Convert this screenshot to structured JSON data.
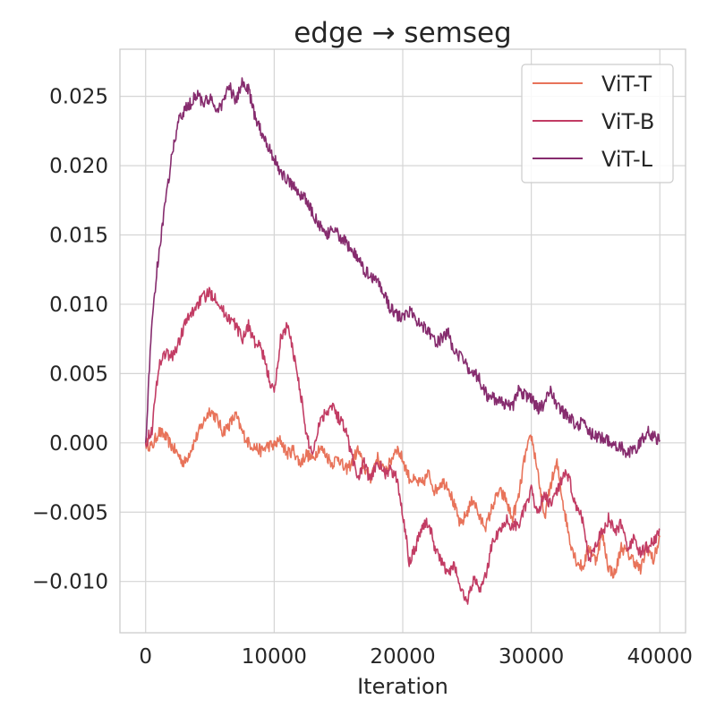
{
  "chart_data": {
    "type": "line",
    "title": "edge → semseg",
    "xlabel": "Iteration",
    "ylabel": "",
    "xlim": [
      -2000,
      42000
    ],
    "ylim": [
      -0.0137,
      0.0284
    ],
    "x_ticks": [
      0,
      10000,
      20000,
      30000,
      40000
    ],
    "x_tick_labels": [
      "0",
      "10000",
      "20000",
      "30000",
      "40000"
    ],
    "y_ticks": [
      -0.01,
      -0.005,
      0.0,
      0.005,
      0.01,
      0.015,
      0.02,
      0.025
    ],
    "y_tick_labels": [
      "−0.010",
      "−0.005",
      "0.000",
      "0.005",
      "0.010",
      "0.015",
      "0.020",
      "0.025"
    ],
    "grid": true,
    "legend_position": "top-right",
    "series": [
      {
        "name": "ViT-T",
        "color": "#e8735a",
        "x": [
          0,
          500,
          1000,
          1500,
          2000,
          2500,
          3000,
          3500,
          4000,
          4500,
          5000,
          5500,
          6000,
          6500,
          7000,
          7500,
          8000,
          8500,
          9000,
          9500,
          10000,
          10500,
          11000,
          11500,
          12000,
          12500,
          13000,
          13500,
          14000,
          14500,
          15000,
          15500,
          16000,
          16500,
          17000,
          17500,
          18000,
          18500,
          19000,
          19500,
          20000,
          20500,
          21000,
          21500,
          22000,
          22500,
          23000,
          23500,
          24000,
          24500,
          25000,
          25500,
          26000,
          26500,
          27000,
          27500,
          28000,
          28500,
          29000,
          29500,
          30000,
          30500,
          31000,
          31500,
          32000,
          32500,
          33000,
          33500,
          34000,
          34500,
          35000,
          35500,
          36000,
          36500,
          37000,
          37500,
          38000,
          38500,
          39000,
          39500,
          40000
        ],
        "y": [
          0.0,
          -0.0003,
          0.0008,
          0.0005,
          -0.0002,
          -0.0008,
          -0.0015,
          -0.0005,
          0.0005,
          0.0015,
          0.0024,
          0.0018,
          0.0008,
          0.0013,
          0.002,
          0.0008,
          0.0,
          -0.0003,
          -0.0006,
          -0.0002,
          -0.0002,
          0.0002,
          -0.0008,
          -0.0005,
          -0.0015,
          -0.0008,
          -0.0012,
          -0.0003,
          -0.0008,
          -0.0015,
          -0.001,
          -0.002,
          -0.0015,
          -0.0005,
          -0.0018,
          -0.0025,
          -0.001,
          -0.002,
          -0.0015,
          -0.0003,
          -0.0012,
          -0.0025,
          -0.0028,
          -0.003,
          -0.0022,
          -0.0035,
          -0.0028,
          -0.003,
          -0.0045,
          -0.006,
          -0.005,
          -0.004,
          -0.0055,
          -0.006,
          -0.0045,
          -0.0035,
          -0.004,
          -0.0055,
          -0.004,
          -0.001,
          0.0005,
          -0.002,
          -0.0055,
          -0.003,
          -0.0015,
          -0.0045,
          -0.007,
          -0.0085,
          -0.009,
          -0.0075,
          -0.0085,
          -0.0065,
          -0.009,
          -0.0095,
          -0.0075,
          -0.008,
          -0.0085,
          -0.0092,
          -0.0075,
          -0.0085,
          -0.0068
        ]
      },
      {
        "name": "ViT-B",
        "color": "#c23c64",
        "x": [
          0,
          500,
          1000,
          1500,
          2000,
          2500,
          3000,
          3500,
          4000,
          4500,
          5000,
          5500,
          6000,
          6500,
          7000,
          7500,
          8000,
          8500,
          9000,
          9500,
          10000,
          10500,
          11000,
          11500,
          12000,
          12500,
          13000,
          13500,
          14000,
          14500,
          15000,
          15500,
          16000,
          16500,
          17000,
          17500,
          18000,
          18500,
          19000,
          19500,
          20000,
          20500,
          21000,
          21500,
          22000,
          22500,
          23000,
          23500,
          24000,
          24500,
          25000,
          25500,
          26000,
          26500,
          27000,
          27500,
          28000,
          28500,
          29000,
          29500,
          30000,
          30500,
          31000,
          31500,
          32000,
          32500,
          33000,
          33500,
          34000,
          34500,
          35000,
          35500,
          36000,
          36500,
          37000,
          37500,
          38000,
          38500,
          39000,
          39500,
          40000
        ],
        "y": [
          0.0,
          0.001,
          0.0055,
          0.0065,
          0.0062,
          0.007,
          0.0085,
          0.0092,
          0.01,
          0.0105,
          0.0108,
          0.0105,
          0.0095,
          0.009,
          0.0085,
          0.0075,
          0.0085,
          0.0072,
          0.0068,
          0.005,
          0.0035,
          0.0075,
          0.0085,
          0.0065,
          0.004,
          0.0005,
          -0.0008,
          0.0015,
          0.0022,
          0.0028,
          0.0018,
          0.0012,
          -0.0008,
          -0.0025,
          -0.0015,
          -0.0028,
          -0.0012,
          -0.0022,
          -0.002,
          -0.0025,
          -0.005,
          -0.0085,
          -0.0075,
          -0.006,
          -0.0058,
          -0.0075,
          -0.0085,
          -0.0095,
          -0.0088,
          -0.0105,
          -0.0115,
          -0.0098,
          -0.0105,
          -0.0095,
          -0.007,
          -0.0065,
          -0.0055,
          -0.006,
          -0.0058,
          -0.0048,
          -0.0035,
          -0.005,
          -0.0038,
          -0.0045,
          -0.0035,
          -0.0022,
          -0.0028,
          -0.0048,
          -0.0055,
          -0.0085,
          -0.0072,
          -0.0065,
          -0.0055,
          -0.0065,
          -0.0058,
          -0.0075,
          -0.007,
          -0.008,
          -0.0075,
          -0.0072,
          -0.0062
        ]
      },
      {
        "name": "ViT-L",
        "color": "#862c6e",
        "x": [
          0,
          500,
          1000,
          1500,
          2000,
          2500,
          3000,
          3500,
          4000,
          4500,
          5000,
          5500,
          6000,
          6500,
          7000,
          7500,
          8000,
          8500,
          9000,
          9500,
          10000,
          10500,
          11000,
          11500,
          12000,
          12500,
          13000,
          13500,
          14000,
          14500,
          15000,
          15500,
          16000,
          16500,
          17000,
          17500,
          18000,
          18500,
          19000,
          19500,
          20000,
          20500,
          21000,
          21500,
          22000,
          22500,
          23000,
          23500,
          24000,
          24500,
          25000,
          25500,
          26000,
          26500,
          27000,
          27500,
          28000,
          28500,
          29000,
          29500,
          30000,
          30500,
          31000,
          31500,
          32000,
          32500,
          33000,
          33500,
          34000,
          34500,
          35000,
          35500,
          36000,
          36500,
          37000,
          37500,
          38000,
          38500,
          39000,
          39500,
          40000
        ],
        "y": [
          0.0,
          0.009,
          0.0135,
          0.017,
          0.0205,
          0.023,
          0.024,
          0.0245,
          0.0252,
          0.0245,
          0.0248,
          0.024,
          0.0245,
          0.0258,
          0.0245,
          0.026,
          0.0255,
          0.0235,
          0.0225,
          0.0215,
          0.0205,
          0.0195,
          0.019,
          0.0185,
          0.018,
          0.0175,
          0.0165,
          0.0158,
          0.0148,
          0.0155,
          0.015,
          0.0145,
          0.014,
          0.0132,
          0.0125,
          0.012,
          0.0118,
          0.0108,
          0.0098,
          0.0092,
          0.009,
          0.0095,
          0.009,
          0.0085,
          0.0082,
          0.0072,
          0.0075,
          0.008,
          0.0065,
          0.0062,
          0.0055,
          0.0052,
          0.0045,
          0.0035,
          0.0032,
          0.003,
          0.0028,
          0.0025,
          0.0038,
          0.0035,
          0.0032,
          0.0025,
          0.0028,
          0.0038,
          0.0028,
          0.0022,
          0.0018,
          0.0012,
          0.0015,
          0.0008,
          0.0005,
          0.0003,
          0.0002,
          -0.0002,
          -0.0003,
          -0.0008,
          -0.0005,
          0.0,
          0.0008,
          0.0005,
          0.0002
        ]
      }
    ]
  }
}
